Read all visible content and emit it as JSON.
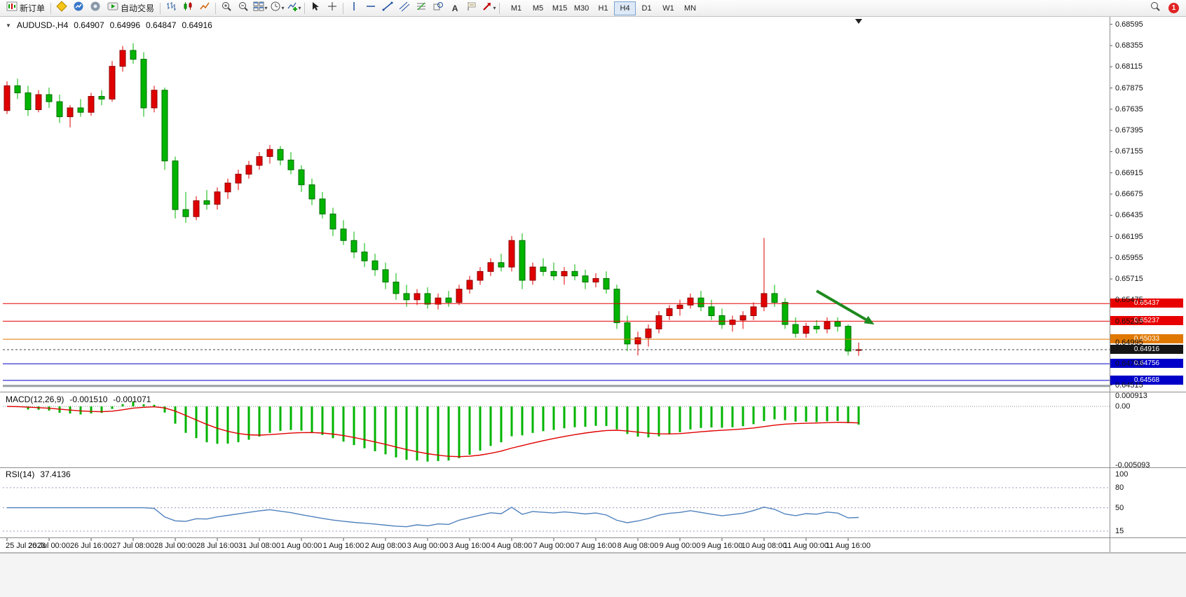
{
  "toolbar": {
    "new_order": "新订单",
    "auto_trading": "自动交易",
    "text_tool_label": "A",
    "timeframes": [
      "M1",
      "M5",
      "M15",
      "M30",
      "H1",
      "H4",
      "D1",
      "W1",
      "MN"
    ],
    "active_timeframe": "H4",
    "notification_badge": "1"
  },
  "chart_data": {
    "type": "candlestick",
    "symbol": "AUDUSD",
    "timeframe": "H4",
    "title": "AUDUSD-,H4",
    "ohlc_display": {
      "open": "0.64907",
      "high": "0.64996",
      "low": "0.64847",
      "close": "0.64916"
    },
    "price_range": [
      0.6444,
      0.6868
    ],
    "x_tick_interval_bars": 4,
    "x_labels": [
      "25 Jul 2023",
      "26 Jul 00:00",
      "26 Jul 16:00",
      "27 Jul 08:00",
      "28 Jul 00:00",
      "28 Jul 16:00",
      "31 Jul 08:00",
      "1 Aug 00:00",
      "1 Aug 16:00",
      "2 Aug 08:00",
      "3 Aug 00:00",
      "3 Aug 16:00",
      "4 Aug 08:00",
      "7 Aug 00:00",
      "7 Aug 16:00",
      "8 Aug 08:00",
      "9 Aug 00:00",
      "9 Aug 16:00",
      "10 Aug 08:00",
      "11 Aug 00:00",
      "11 Aug 16:00"
    ],
    "y_ticks": [
      "0.68595",
      "0.68355",
      "0.68115",
      "0.67875",
      "0.67635",
      "0.67395",
      "0.67155",
      "0.66915",
      "0.66675",
      "0.66435",
      "0.66195",
      "0.65955",
      "0.65715",
      "0.65475",
      "0.65235",
      "0.64995",
      "0.64755",
      "0.64515"
    ],
    "colors": {
      "bull": "#e00000",
      "bear": "#00b400",
      "macd_hist": "#00b400",
      "macd_signal": "#e00000",
      "rsi_line": "#4f81bd",
      "line_red": "#e80000",
      "line_orange": "#e07800",
      "line_blue": "#0000c8"
    },
    "candles": [
      [
        0.6762,
        0.6795,
        0.6758,
        0.679
      ],
      [
        0.679,
        0.6798,
        0.6775,
        0.6782
      ],
      [
        0.6782,
        0.679,
        0.6756,
        0.6763
      ],
      [
        0.6763,
        0.6785,
        0.676,
        0.678
      ],
      [
        0.678,
        0.6788,
        0.6765,
        0.6772
      ],
      [
        0.6772,
        0.678,
        0.6748,
        0.6755
      ],
      [
        0.6755,
        0.6768,
        0.6743,
        0.6765
      ],
      [
        0.6765,
        0.6775,
        0.6755,
        0.676
      ],
      [
        0.676,
        0.6782,
        0.6756,
        0.6778
      ],
      [
        0.6778,
        0.6785,
        0.6768,
        0.6775
      ],
      [
        0.6775,
        0.6818,
        0.6772,
        0.6812
      ],
      [
        0.6812,
        0.6835,
        0.6806,
        0.683
      ],
      [
        0.683,
        0.6838,
        0.6815,
        0.682
      ],
      [
        0.682,
        0.6828,
        0.6755,
        0.6765
      ],
      [
        0.6765,
        0.679,
        0.676,
        0.6785
      ],
      [
        0.6785,
        0.6788,
        0.6695,
        0.6705
      ],
      [
        0.6705,
        0.671,
        0.664,
        0.665
      ],
      [
        0.665,
        0.667,
        0.6635,
        0.6642
      ],
      [
        0.6642,
        0.6665,
        0.6638,
        0.666
      ],
      [
        0.666,
        0.6672,
        0.665,
        0.6656
      ],
      [
        0.6656,
        0.6675,
        0.665,
        0.667
      ],
      [
        0.667,
        0.6685,
        0.6662,
        0.668
      ],
      [
        0.668,
        0.6695,
        0.6672,
        0.669
      ],
      [
        0.669,
        0.6705,
        0.6685,
        0.67
      ],
      [
        0.67,
        0.6715,
        0.6695,
        0.671
      ],
      [
        0.671,
        0.6723,
        0.6702,
        0.6718
      ],
      [
        0.6718,
        0.6722,
        0.67,
        0.6706
      ],
      [
        0.6706,
        0.6715,
        0.669,
        0.6695
      ],
      [
        0.6695,
        0.67,
        0.667,
        0.6678
      ],
      [
        0.6678,
        0.6685,
        0.6655,
        0.6662
      ],
      [
        0.6662,
        0.667,
        0.664,
        0.6645
      ],
      [
        0.6645,
        0.6652,
        0.662,
        0.6628
      ],
      [
        0.6628,
        0.6638,
        0.661,
        0.6615
      ],
      [
        0.6615,
        0.6625,
        0.6595,
        0.6602
      ],
      [
        0.6602,
        0.6612,
        0.6585,
        0.6592
      ],
      [
        0.6592,
        0.66,
        0.6575,
        0.6582
      ],
      [
        0.6582,
        0.659,
        0.656,
        0.6568
      ],
      [
        0.6568,
        0.6578,
        0.6548,
        0.6555
      ],
      [
        0.6555,
        0.6565,
        0.654,
        0.6548
      ],
      [
        0.6548,
        0.656,
        0.6542,
        0.6555
      ],
      [
        0.6555,
        0.6562,
        0.6538,
        0.6543
      ],
      [
        0.6543,
        0.6555,
        0.6537,
        0.655
      ],
      [
        0.655,
        0.6558,
        0.654,
        0.6545
      ],
      [
        0.6545,
        0.6565,
        0.6542,
        0.656
      ],
      [
        0.656,
        0.6575,
        0.6555,
        0.657
      ],
      [
        0.657,
        0.6585,
        0.6565,
        0.658
      ],
      [
        0.658,
        0.6595,
        0.6575,
        0.659
      ],
      [
        0.659,
        0.66,
        0.658,
        0.6585
      ],
      [
        0.6585,
        0.662,
        0.658,
        0.6615
      ],
      [
        0.6615,
        0.6623,
        0.656,
        0.657
      ],
      [
        0.657,
        0.659,
        0.6565,
        0.6585
      ],
      [
        0.6585,
        0.6595,
        0.6575,
        0.658
      ],
      [
        0.658,
        0.659,
        0.657,
        0.6575
      ],
      [
        0.6575,
        0.6585,
        0.6565,
        0.658
      ],
      [
        0.658,
        0.6588,
        0.657,
        0.6575
      ],
      [
        0.6575,
        0.6582,
        0.656,
        0.6568
      ],
      [
        0.6568,
        0.6578,
        0.6562,
        0.6572
      ],
      [
        0.6572,
        0.658,
        0.6555,
        0.656
      ],
      [
        0.656,
        0.6565,
        0.6515,
        0.6522
      ],
      [
        0.6522,
        0.653,
        0.649,
        0.6498
      ],
      [
        0.6498,
        0.6512,
        0.6485,
        0.6505
      ],
      [
        0.6505,
        0.652,
        0.6495,
        0.6515
      ],
      [
        0.6515,
        0.6535,
        0.651,
        0.653
      ],
      [
        0.653,
        0.6542,
        0.6525,
        0.6538
      ],
      [
        0.6538,
        0.6548,
        0.653,
        0.6542
      ],
      [
        0.6542,
        0.6555,
        0.6538,
        0.655
      ],
      [
        0.655,
        0.6558,
        0.6535,
        0.654
      ],
      [
        0.654,
        0.6548,
        0.6525,
        0.653
      ],
      [
        0.653,
        0.6538,
        0.6515,
        0.652
      ],
      [
        0.652,
        0.653,
        0.6512,
        0.6525
      ],
      [
        0.6525,
        0.6535,
        0.6515,
        0.653
      ],
      [
        0.653,
        0.6545,
        0.6525,
        0.654
      ],
      [
        0.654,
        0.6618,
        0.6535,
        0.6555
      ],
      [
        0.6555,
        0.6565,
        0.654,
        0.6545
      ],
      [
        0.6545,
        0.655,
        0.6515,
        0.652
      ],
      [
        0.652,
        0.6528,
        0.6505,
        0.651
      ],
      [
        0.651,
        0.6522,
        0.6505,
        0.6518
      ],
      [
        0.6518,
        0.6525,
        0.651,
        0.6515
      ],
      [
        0.6515,
        0.6528,
        0.651,
        0.6523
      ],
      [
        0.6523,
        0.6528,
        0.6512,
        0.6518
      ],
      [
        0.6518,
        0.652,
        0.6485,
        0.649
      ],
      [
        0.64907,
        0.64996,
        0.64847,
        0.64916
      ]
    ],
    "horizontal_lines": [
      {
        "price": 0.65437,
        "label": "0.65437",
        "color": "#e80000",
        "width": 1
      },
      {
        "price": 0.65237,
        "label": "0.65237",
        "color": "#e80000",
        "width": 1
      },
      {
        "price": 0.65033,
        "label": "0.65033",
        "color": "#e07800",
        "width": 1
      },
      {
        "price": 0.64756,
        "label": "0.64756",
        "color": "#0000c8",
        "width": 1
      },
      {
        "price": 0.64568,
        "label": "0.64568",
        "color": "#0000c8",
        "width": 1
      },
      {
        "price": 0.64505,
        "label": "",
        "color": "#9aa0a8",
        "width": 3
      }
    ],
    "current_price": {
      "value": 0.64916,
      "label": "0.64916",
      "badge_color": "#151515"
    },
    "indicators": {
      "macd": {
        "name": "MACD(12,26,9)",
        "main_value": "-0.001510",
        "signal_value": "-0.001071",
        "fast": 12,
        "slow": 26,
        "signal": 9,
        "axis_labels": {
          "max": "0.000913",
          "zero": "0.00",
          "min": "-0.005093"
        }
      },
      "rsi": {
        "name": "RSI(14)",
        "value": "37.4136",
        "period": 14,
        "levels": [
          80,
          50,
          15
        ],
        "axis_labels": [
          "100",
          "80",
          "50",
          "15"
        ]
      }
    },
    "annotations": [
      {
        "type": "arrow",
        "color": "#1e8a1e",
        "from_bar": 77,
        "from_price": 0.6558,
        "to_bar": 82.5,
        "to_price": 0.652
      }
    ]
  }
}
